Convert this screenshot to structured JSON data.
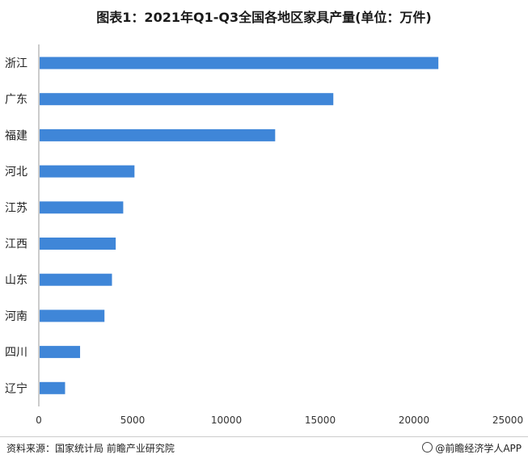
{
  "chart_data": {
    "type": "bar",
    "orientation": "horizontal",
    "title": "图表1：2021年Q1-Q3全国各地区家具产量(单位：万件)",
    "categories": [
      "浙江",
      "广东",
      "福建",
      "河北",
      "江苏",
      "江西",
      "山东",
      "河南",
      "四川",
      "辽宁"
    ],
    "values": [
      21300,
      15700,
      12600,
      5100,
      4500,
      4100,
      3900,
      3500,
      2200,
      1400
    ],
    "xlim": [
      0,
      25000
    ],
    "xticks": [
      "0",
      "5000",
      "10000",
      "15000",
      "20000",
      "25000"
    ],
    "xlabel": "",
    "ylabel": "",
    "bar_color": "#3f86d8",
    "grid": false
  },
  "footer": {
    "source": "资料来源：国家统计局 前瞻产业研究院",
    "brand": "@前瞻经济学人APP"
  }
}
